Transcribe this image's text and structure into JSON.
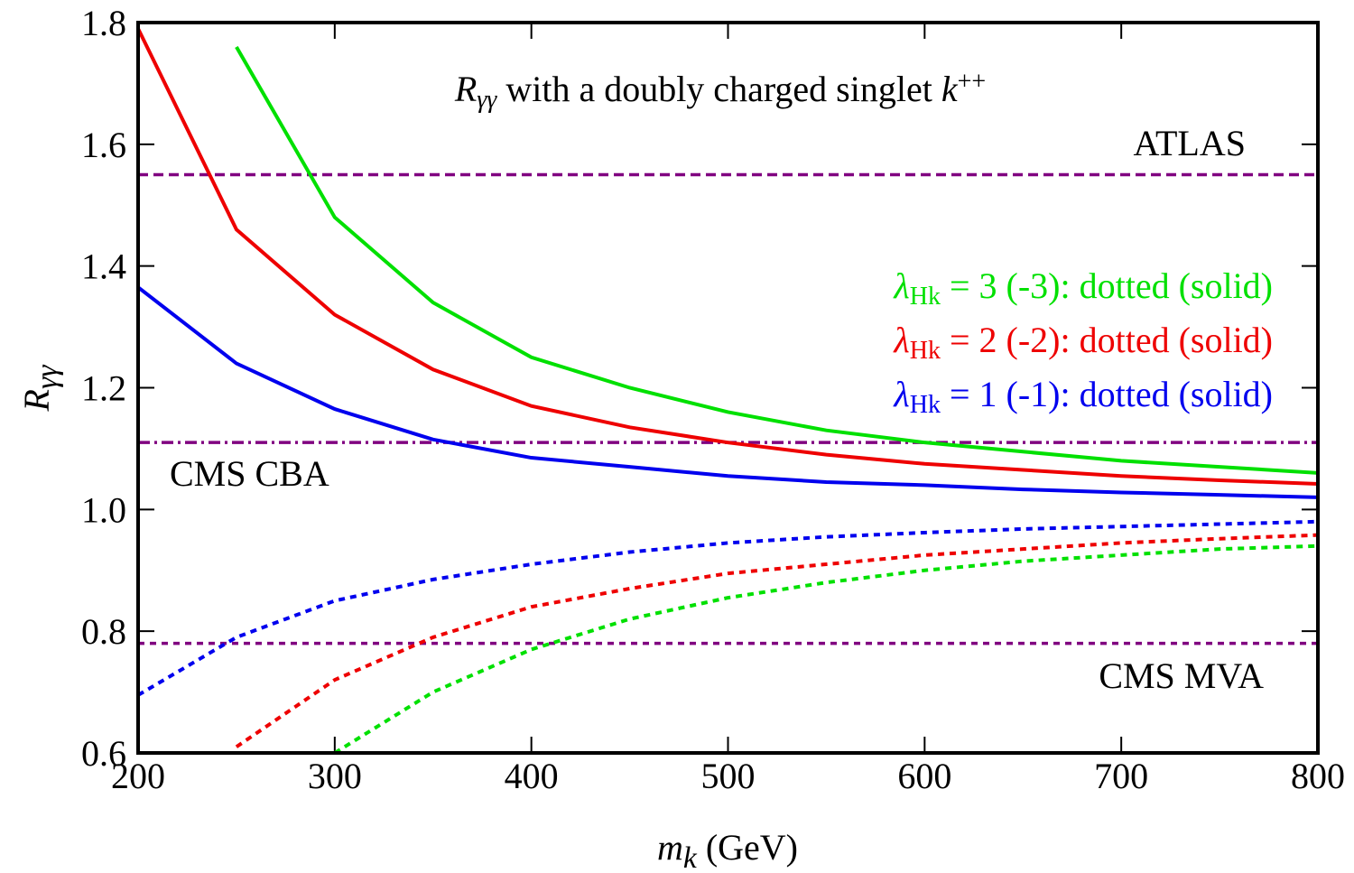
{
  "chart_data": {
    "type": "line",
    "title": [
      {
        "t": "R",
        "s": "i"
      },
      {
        "t": "γγ",
        "s": "sub-i"
      },
      {
        "t": " with a doubly charged singlet "
      },
      {
        "t": "k",
        "s": "i"
      },
      {
        "t": "++",
        "s": "sup"
      }
    ],
    "xlabel": [
      {
        "t": "m",
        "s": "i"
      },
      {
        "t": "k",
        "s": "sub-i"
      },
      {
        "t": " (GeV)"
      }
    ],
    "ylabel": [
      {
        "t": "R",
        "s": "i"
      },
      {
        "t": "γγ",
        "s": "sub-i"
      }
    ],
    "x": [
      200,
      250,
      300,
      350,
      400,
      450,
      500,
      550,
      600,
      650,
      700,
      750,
      800
    ],
    "xlim": [
      200,
      800
    ],
    "xticks": [
      200,
      300,
      400,
      500,
      600,
      700,
      800
    ],
    "ylim": [
      0.6,
      1.8
    ],
    "yticks": [
      0.6,
      0.8,
      {
        "value": 1,
        "label": "1.0"
      },
      1.2,
      1.4,
      1.6,
      1.8
    ],
    "series": [
      {
        "color": "#00e000",
        "dash": "solid",
        "values": [
          null,
          1.76,
          1.48,
          1.34,
          1.25,
          1.2,
          1.16,
          1.13,
          1.11,
          1.095,
          1.08,
          1.07,
          1.06
        ]
      },
      {
        "color": "#ee0000",
        "dash": "solid",
        "values": [
          1.79,
          1.46,
          1.32,
          1.23,
          1.17,
          1.135,
          1.11,
          1.09,
          1.075,
          1.065,
          1.055,
          1.048,
          1.042
        ]
      },
      {
        "color": "#0000ee",
        "dash": "solid",
        "values": [
          1.365,
          1.24,
          1.165,
          1.115,
          1.085,
          1.07,
          1.055,
          1.045,
          1.04,
          1.033,
          1.028,
          1.024,
          1.02
        ]
      },
      {
        "color": "#00e000",
        "dash": "dotted",
        "values": [
          null,
          null,
          0.6,
          0.7,
          0.77,
          0.82,
          0.855,
          0.88,
          0.9,
          0.915,
          0.925,
          0.935,
          0.94
        ]
      },
      {
        "color": "#ee0000",
        "dash": "dotted",
        "values": [
          null,
          0.61,
          0.72,
          0.79,
          0.84,
          0.87,
          0.895,
          0.91,
          0.925,
          0.935,
          0.945,
          0.952,
          0.958
        ]
      },
      {
        "color": "#0000ee",
        "dash": "dotted",
        "values": [
          0.695,
          0.79,
          0.85,
          0.885,
          0.91,
          0.93,
          0.945,
          0.955,
          0.962,
          0.968,
          0.972,
          0.976,
          0.98
        ]
      }
    ],
    "hlines": [
      {
        "name": "ATLAS",
        "value": 1.55,
        "dash": "dashed",
        "color": "#800080"
      },
      {
        "name": "CMS CBA",
        "value": 1.11,
        "dash": "dashdot",
        "color": "#800080"
      },
      {
        "name": "CMS MVA",
        "value": 0.78,
        "dash": "dotted",
        "color": "#800080"
      }
    ],
    "legend": [
      {
        "color": "#00e000",
        "parts": [
          {
            "t": "λ",
            "s": "i"
          },
          {
            "t": "Hk",
            "s": "sub"
          },
          {
            "t": " = 3 (-3): dotted (solid)"
          }
        ]
      },
      {
        "color": "#ee0000",
        "parts": [
          {
            "t": "λ",
            "s": "i"
          },
          {
            "t": "Hk",
            "s": "sub"
          },
          {
            "t": " = 2 (-2): dotted (solid)"
          }
        ]
      },
      {
        "color": "#0000ee",
        "parts": [
          {
            "t": "λ",
            "s": "i"
          },
          {
            "t": "Hk",
            "s": "sub"
          },
          {
            "t": " = 1 (-1): dotted (solid)"
          }
        ]
      }
    ]
  }
}
